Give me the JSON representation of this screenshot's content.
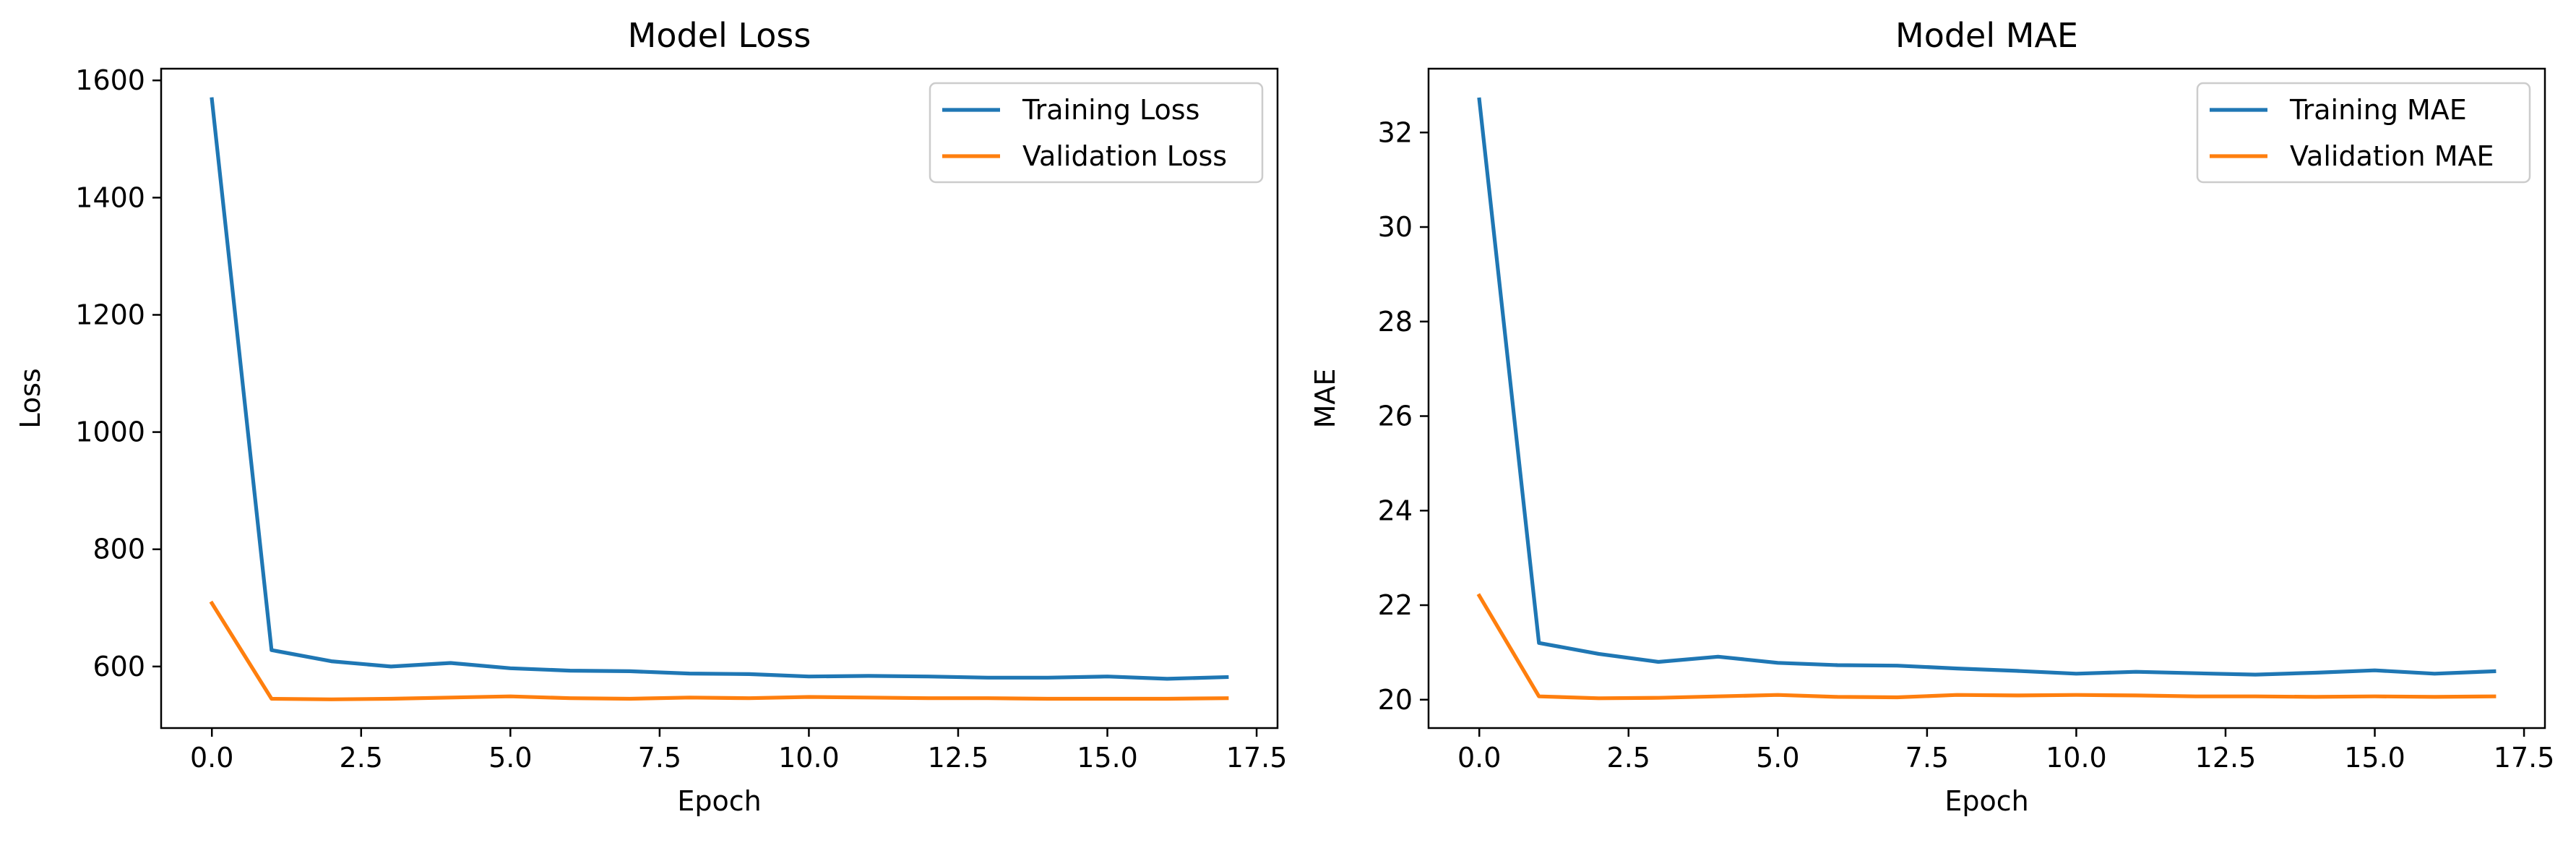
{
  "chart_data": [
    {
      "type": "line",
      "title": "Model Loss",
      "xlabel": "Epoch",
      "ylabel": "Loss",
      "xlim": [
        -0.85,
        17.85
      ],
      "ylim": [
        495,
        1620
      ],
      "xticks": [
        0.0,
        2.5,
        5.0,
        7.5,
        10.0,
        12.5,
        15.0,
        17.5
      ],
      "xtick_labels": [
        "0.0",
        "2.5",
        "5.0",
        "7.5",
        "10.0",
        "12.5",
        "15.0",
        "17.5"
      ],
      "yticks": [
        600,
        800,
        1000,
        1200,
        1400,
        1600
      ],
      "ytick_labels": [
        "600",
        "800",
        "1000",
        "1200",
        "1400",
        "1600"
      ],
      "grid": false,
      "legend_position": "top-right",
      "x": [
        0,
        1,
        2,
        3,
        4,
        5,
        6,
        7,
        8,
        9,
        10,
        11,
        12,
        13,
        14,
        15,
        16,
        17
      ],
      "series": [
        {
          "name": "Training Loss",
          "color": "#1f77b4",
          "values": [
            1568,
            628,
            609,
            600,
            606,
            597,
            593,
            592,
            588,
            587,
            583,
            584,
            583,
            581,
            581,
            583,
            579,
            582
          ]
        },
        {
          "name": "Validation Loss",
          "color": "#ff7f0e",
          "values": [
            708,
            545,
            544,
            545,
            547,
            549,
            546,
            545,
            547,
            546,
            548,
            547,
            546,
            546,
            545,
            545,
            545,
            546
          ]
        }
      ]
    },
    {
      "type": "line",
      "title": "Model MAE",
      "xlabel": "Epoch",
      "ylabel": "MAE",
      "xlim": [
        -0.85,
        17.85
      ],
      "ylim": [
        19.4,
        33.35
      ],
      "xticks": [
        0.0,
        2.5,
        5.0,
        7.5,
        10.0,
        12.5,
        15.0,
        17.5
      ],
      "xtick_labels": [
        "0.0",
        "2.5",
        "5.0",
        "7.5",
        "10.0",
        "12.5",
        "15.0",
        "17.5"
      ],
      "yticks": [
        20,
        22,
        24,
        26,
        28,
        30,
        32
      ],
      "ytick_labels": [
        "20",
        "22",
        "24",
        "26",
        "28",
        "30",
        "32"
      ],
      "grid": false,
      "legend_position": "top-right",
      "x": [
        0,
        1,
        2,
        3,
        4,
        5,
        6,
        7,
        8,
        9,
        10,
        11,
        12,
        13,
        14,
        15,
        16,
        17
      ],
      "series": [
        {
          "name": "Training MAE",
          "color": "#1f77b4",
          "values": [
            32.7,
            21.2,
            20.97,
            20.8,
            20.91,
            20.78,
            20.73,
            20.72,
            20.66,
            20.61,
            20.55,
            20.59,
            20.56,
            20.53,
            20.57,
            20.62,
            20.55,
            20.6
          ]
        },
        {
          "name": "Validation MAE",
          "color": "#ff7f0e",
          "values": [
            22.2,
            20.07,
            20.03,
            20.04,
            20.07,
            20.1,
            20.06,
            20.05,
            20.1,
            20.09,
            20.1,
            20.09,
            20.07,
            20.07,
            20.06,
            20.07,
            20.06,
            20.07
          ]
        }
      ]
    }
  ]
}
